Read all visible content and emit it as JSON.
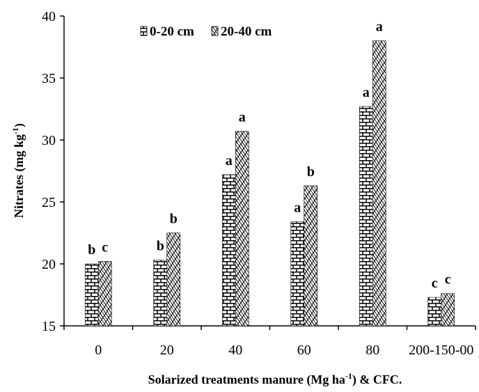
{
  "chart_data": {
    "type": "bar",
    "categories": [
      "0",
      "20",
      "40",
      "60",
      "80",
      "200-150-00"
    ],
    "series": [
      {
        "name": "0-20 cm",
        "values": [
          20.0,
          20.3,
          27.2,
          23.4,
          32.7,
          17.3
        ],
        "labels": [
          "b",
          "b",
          "a",
          "a",
          "a",
          "c"
        ]
      },
      {
        "name": "20-40 cm",
        "values": [
          20.2,
          22.5,
          30.7,
          26.3,
          38.0,
          17.6
        ],
        "labels": [
          "c",
          "b",
          "a",
          "b",
          "a",
          "c"
        ]
      }
    ],
    "ylabel_parts": [
      "Nitrates (mg kg",
      "-1",
      ")"
    ],
    "xlabel_parts": [
      "Solarized treatments manure (Mg ha",
      "-1",
      ") & CFC."
    ],
    "ylim": [
      15,
      40
    ],
    "yticks": [
      15,
      20,
      25,
      30,
      35,
      40
    ],
    "legend_position": "top-left",
    "grid": false
  }
}
